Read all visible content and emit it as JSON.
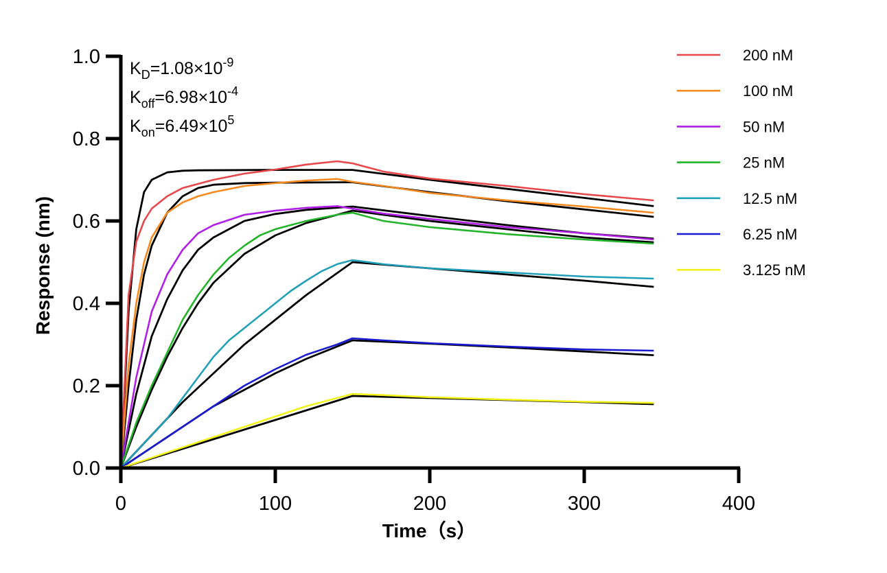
{
  "chart_data": {
    "type": "line",
    "xlabel": "Time（s）",
    "ylabel": "Response (nm)",
    "xlim": [
      0,
      400
    ],
    "ylim": [
      0,
      1.0
    ],
    "xticks": [
      "0",
      "100",
      "200",
      "300",
      "400"
    ],
    "yticks": [
      "0.0",
      "0.2",
      "0.4",
      "0.6",
      "0.8",
      "1.0"
    ],
    "grid": false,
    "legend_position": "top-right",
    "annotations": {
      "kd": {
        "label": "K",
        "sub": "D",
        "value": "=1.08×10",
        "exp": "-9"
      },
      "koff": {
        "label": "K",
        "sub": "off",
        "value": "=6.98×10",
        "exp": "-4"
      },
      "kon": {
        "label": "K",
        "sub": "on",
        "value": "=6.49×10",
        "exp": "5"
      }
    },
    "series": [
      {
        "name": "200 nM",
        "color": "#e8474a",
        "x": [
          0,
          5,
          10,
          15,
          20,
          30,
          40,
          50,
          60,
          80,
          100,
          120,
          140,
          150,
          170,
          200,
          250,
          300,
          345
        ],
        "y": [
          0,
          0.42,
          0.55,
          0.6,
          0.63,
          0.66,
          0.68,
          0.69,
          0.7,
          0.715,
          0.725,
          0.737,
          0.745,
          0.74,
          0.72,
          0.703,
          0.685,
          0.665,
          0.65
        ]
      },
      {
        "name": "100 nM",
        "color": "#f5891e",
        "x": [
          0,
          5,
          10,
          15,
          20,
          30,
          40,
          50,
          60,
          80,
          100,
          120,
          140,
          150,
          170,
          200,
          250,
          300,
          345
        ],
        "y": [
          0,
          0.25,
          0.4,
          0.5,
          0.56,
          0.62,
          0.645,
          0.66,
          0.67,
          0.685,
          0.692,
          0.698,
          0.702,
          0.695,
          0.685,
          0.668,
          0.65,
          0.635,
          0.62
        ]
      },
      {
        "name": "50 nM",
        "color": "#b11ee8",
        "x": [
          0,
          10,
          20,
          30,
          40,
          50,
          60,
          80,
          100,
          120,
          140,
          150,
          170,
          200,
          250,
          300,
          345
        ],
        "y": [
          0,
          0.22,
          0.38,
          0.47,
          0.53,
          0.57,
          0.59,
          0.615,
          0.625,
          0.632,
          0.636,
          0.63,
          0.618,
          0.605,
          0.585,
          0.57,
          0.555
        ]
      },
      {
        "name": "25 nM",
        "color": "#22b52a",
        "x": [
          0,
          10,
          20,
          30,
          40,
          50,
          60,
          70,
          80,
          90,
          100,
          120,
          140,
          150,
          170,
          200,
          250,
          300,
          345
        ],
        "y": [
          0,
          0.11,
          0.2,
          0.28,
          0.36,
          0.42,
          0.47,
          0.51,
          0.54,
          0.565,
          0.58,
          0.6,
          0.615,
          0.62,
          0.6,
          0.585,
          0.568,
          0.555,
          0.545
        ]
      },
      {
        "name": "12.5 nM",
        "color": "#1f9fb8",
        "x": [
          0,
          10,
          20,
          30,
          40,
          50,
          60,
          70,
          80,
          90,
          100,
          110,
          120,
          130,
          140,
          150,
          170,
          200,
          250,
          300,
          345
        ],
        "y": [
          0,
          0.04,
          0.08,
          0.12,
          0.17,
          0.22,
          0.27,
          0.31,
          0.34,
          0.37,
          0.4,
          0.43,
          0.455,
          0.478,
          0.495,
          0.505,
          0.495,
          0.485,
          0.475,
          0.465,
          0.46
        ]
      },
      {
        "name": "6.25 nM",
        "color": "#1a1ad0",
        "x": [
          0,
          10,
          20,
          40,
          60,
          80,
          100,
          120,
          140,
          150,
          170,
          200,
          250,
          300,
          345
        ],
        "y": [
          0,
          0.025,
          0.05,
          0.1,
          0.15,
          0.2,
          0.24,
          0.275,
          0.3,
          0.315,
          0.31,
          0.303,
          0.295,
          0.288,
          0.285
        ]
      },
      {
        "name": "3.125 nM",
        "color": "#f2f21a",
        "x": [
          0,
          20,
          40,
          60,
          80,
          100,
          120,
          140,
          150,
          170,
          200,
          250,
          300,
          345
        ],
        "y": [
          0,
          0.025,
          0.05,
          0.075,
          0.1,
          0.125,
          0.15,
          0.17,
          0.18,
          0.177,
          0.172,
          0.166,
          0.161,
          0.158
        ]
      }
    ],
    "fits": [
      {
        "x": [
          0,
          5,
          10,
          15,
          20,
          30,
          40,
          50,
          100,
          150,
          200,
          250,
          300,
          345
        ],
        "y": [
          0,
          0.38,
          0.58,
          0.67,
          0.7,
          0.718,
          0.722,
          0.723,
          0.724,
          0.724,
          0.7,
          0.678,
          0.656,
          0.636
        ]
      },
      {
        "x": [
          0,
          5,
          10,
          15,
          20,
          30,
          40,
          50,
          60,
          80,
          100,
          150,
          200,
          250,
          300,
          345
        ],
        "y": [
          0,
          0.2,
          0.36,
          0.47,
          0.54,
          0.62,
          0.66,
          0.68,
          0.688,
          0.692,
          0.693,
          0.694,
          0.67,
          0.648,
          0.628,
          0.61
        ]
      },
      {
        "x": [
          0,
          10,
          20,
          30,
          40,
          50,
          60,
          80,
          100,
          120,
          150,
          200,
          250,
          300,
          345
        ],
        "y": [
          0,
          0.18,
          0.32,
          0.41,
          0.48,
          0.53,
          0.56,
          0.6,
          0.617,
          0.627,
          0.635,
          0.612,
          0.59,
          0.57,
          0.557
        ]
      },
      {
        "x": [
          0,
          10,
          20,
          30,
          40,
          50,
          60,
          80,
          100,
          120,
          150,
          200,
          250,
          300,
          345
        ],
        "y": [
          0,
          0.1,
          0.19,
          0.27,
          0.34,
          0.4,
          0.45,
          0.52,
          0.565,
          0.595,
          0.625,
          0.6,
          0.58,
          0.56,
          0.548
        ]
      },
      {
        "x": [
          0,
          20,
          40,
          60,
          80,
          100,
          120,
          150,
          200,
          250,
          300,
          345
        ],
        "y": [
          0,
          0.08,
          0.16,
          0.23,
          0.3,
          0.36,
          0.42,
          0.5,
          0.485,
          0.47,
          0.455,
          0.44
        ]
      },
      {
        "x": [
          0,
          20,
          40,
          60,
          80,
          100,
          120,
          150,
          200,
          250,
          300,
          345
        ],
        "y": [
          0,
          0.05,
          0.1,
          0.15,
          0.19,
          0.23,
          0.265,
          0.31,
          0.302,
          0.293,
          0.283,
          0.274
        ]
      },
      {
        "x": [
          0,
          30,
          60,
          90,
          120,
          150,
          200,
          250,
          300,
          345
        ],
        "y": [
          0,
          0.035,
          0.07,
          0.105,
          0.14,
          0.175,
          0.17,
          0.165,
          0.16,
          0.155
        ]
      }
    ]
  }
}
